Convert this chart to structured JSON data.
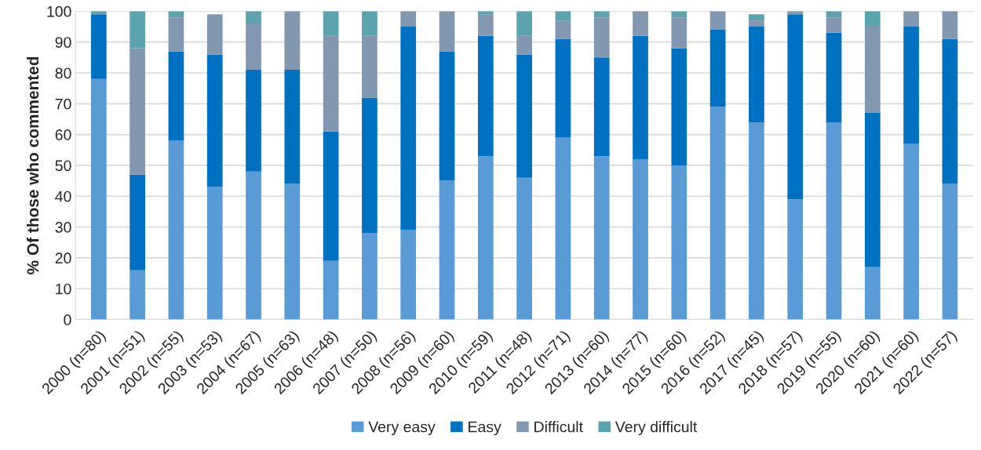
{
  "chart_data": {
    "type": "bar",
    "stacked": true,
    "ylabel": "% Of those who commented",
    "categories": [
      "2000 (n=80)",
      "2001 (n=51)",
      "2002 (n=55)",
      "2003 (n=53)",
      "2004 (n=67)",
      "2005 (n=63)",
      "2006 (n=48)",
      "2007 (n=50)",
      "2008 (n=56)",
      "2009 (n=60)",
      "2010 (n=59)",
      "2011 (n=48)",
      "2012 (n=71)",
      "2013 (n=60)",
      "2014 (n=77)",
      "2015 (n=60)",
      "2016 (n=52)",
      "2017 (n=45)",
      "2018 (n=57)",
      "2019 (n=55)",
      "2020 (n=60)",
      "2021 (n=60)",
      "2022 (n=57)"
    ],
    "series": [
      {
        "name": "Very easy",
        "color": "#5b9bd5",
        "values": [
          78,
          16,
          58,
          43,
          48,
          44,
          19,
          28,
          29,
          45,
          53,
          46,
          59,
          53,
          52,
          50,
          69,
          64,
          39,
          64,
          17,
          57,
          44
        ]
      },
      {
        "name": "Easy",
        "color": "#0070c0",
        "values": [
          21,
          31,
          29,
          43,
          33,
          37,
          42,
          44,
          66,
          42,
          39,
          40,
          32,
          32,
          40,
          38,
          25,
          31,
          60,
          29,
          50,
          38,
          47
        ]
      },
      {
        "name": "Difficult",
        "color": "#8497b0",
        "values": [
          0,
          41,
          11,
          13,
          15,
          19,
          31,
          20,
          5,
          13,
          7,
          6,
          6,
          13,
          8,
          10,
          6,
          2,
          1,
          5,
          28,
          5,
          9
        ]
      },
      {
        "name": "Very difficult",
        "color": "#5ba3ad",
        "values": [
          1,
          12,
          2,
          0,
          4,
          0,
          8,
          8,
          0,
          0,
          1,
          8,
          3,
          2,
          0,
          2,
          0,
          2,
          0,
          2,
          5,
          0,
          0
        ]
      }
    ],
    "ylim": [
      0,
      100
    ],
    "yticks": [
      0,
      10,
      20,
      30,
      40,
      50,
      60,
      70,
      80,
      90,
      100
    ],
    "grid": "y",
    "legend": "bottom"
  }
}
